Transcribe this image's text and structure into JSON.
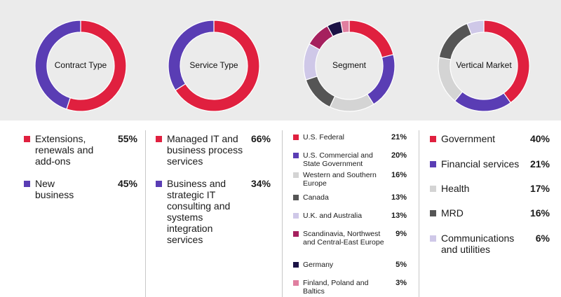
{
  "chart_data": [
    {
      "type": "pie",
      "title": "Contract Type",
      "categories": [
        "Extensions, renewals and add-ons",
        "New business"
      ],
      "values": [
        55,
        45
      ],
      "value_labels": [
        "55%",
        "45%"
      ],
      "colors": [
        "#e0203f",
        "#5a3db4"
      ]
    },
    {
      "type": "pie",
      "title": "Service Type",
      "categories": [
        "Managed IT and business process services",
        "Business and strategic IT consulting and systems integration services"
      ],
      "values": [
        66,
        34
      ],
      "value_labels": [
        "66%",
        "34%"
      ],
      "colors": [
        "#e0203f",
        "#5a3db4"
      ]
    },
    {
      "type": "pie",
      "title": "Segment",
      "categories": [
        "U.S. Federal",
        "U.S. Commercial and State Government",
        "Western and Southern Europe",
        "Canada",
        "U.K. and Australia",
        "Scandinavia, Northwest and Central-East Europe",
        "Germany",
        "Finland, Poland and Baltics"
      ],
      "values": [
        21,
        20,
        16,
        13,
        13,
        9,
        5,
        3
      ],
      "value_labels": [
        "21%",
        "20%",
        "16%",
        "13%",
        "13%",
        "9%",
        "5%",
        "3%"
      ],
      "colors": [
        "#e0203f",
        "#5a3db4",
        "#d4d4d4",
        "#555555",
        "#cfc8e8",
        "#a5205e",
        "#1b1245",
        "#e07fa0"
      ]
    },
    {
      "type": "pie",
      "title": "Vertical Market",
      "categories": [
        "Government",
        "Financial services",
        "Health",
        "MRD",
        "Communications and utilities"
      ],
      "values": [
        40,
        21,
        17,
        16,
        6
      ],
      "value_labels": [
        "40%",
        "21%",
        "17%",
        "16%",
        "6%"
      ],
      "colors": [
        "#e0203f",
        "#5a3db4",
        "#d4d4d4",
        "#555555",
        "#cfc8e8"
      ]
    }
  ]
}
